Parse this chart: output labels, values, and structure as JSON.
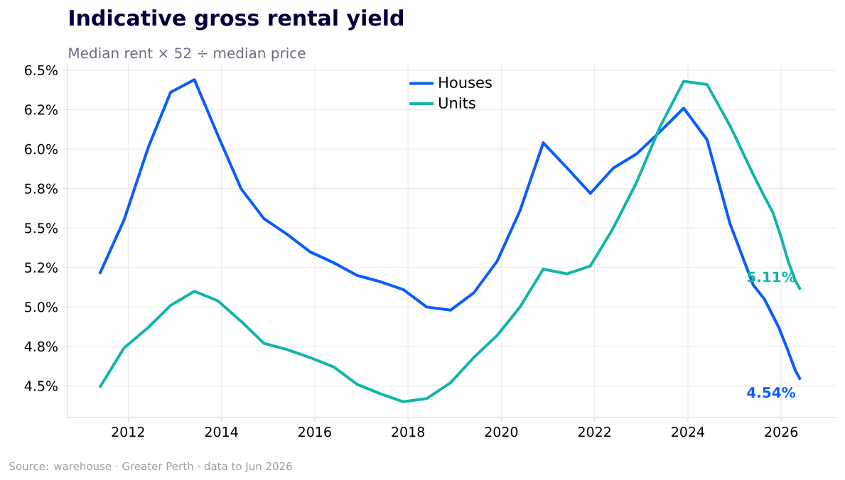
{
  "chart_data": {
    "type": "line",
    "title": "Indicative gross rental yield",
    "subtitle": "Median rent × 52 ÷ median price",
    "xlim": [
      2010.7,
      2027.17
    ],
    "xticks": [
      2012,
      2014,
      2016,
      2018,
      2020,
      2022,
      2024,
      2026
    ],
    "ylim": [
      4.3,
      6.54
    ],
    "yticks": [
      {
        "value": 4.5,
        "label": "4.5%"
      },
      {
        "value": 4.75,
        "label": "4.8%"
      },
      {
        "value": 5.0,
        "label": "5.0%"
      },
      {
        "value": 5.25,
        "label": "5.2%"
      },
      {
        "value": 5.5,
        "label": "5.5%"
      },
      {
        "value": 5.75,
        "label": "5.8%"
      },
      {
        "value": 6.0,
        "label": "6.0%"
      },
      {
        "value": 6.25,
        "label": "6.2%"
      },
      {
        "value": 6.5,
        "label": "6.5%"
      }
    ],
    "grid": true,
    "legend": "top",
    "line_style": "solid",
    "marker": "none",
    "series": [
      {
        "name": "Houses",
        "color": "#0a5cff",
        "x": [
          2011.39,
          2011.91,
          2012.43,
          2012.91,
          2013.42,
          2013.92,
          2014.42,
          2014.91,
          2015.41,
          2015.9,
          2016.41,
          2016.91,
          2017.41,
          2017.9,
          2018.4,
          2018.91,
          2019.41,
          2019.91,
          2020.4,
          2020.9,
          2021.41,
          2021.91,
          2022.4,
          2022.9,
          2023.4,
          2023.91,
          2024.41,
          2024.9,
          2025.4,
          2025.64,
          2025.95,
          2026.15,
          2026.3,
          2026.41
        ],
        "values": [
          5.21,
          5.55,
          6.01,
          6.36,
          6.44,
          6.09,
          5.75,
          5.56,
          5.46,
          5.35,
          5.28,
          5.2,
          5.16,
          5.11,
          5.0,
          4.98,
          5.09,
          5.29,
          5.61,
          6.04,
          5.88,
          5.72,
          5.88,
          5.97,
          6.11,
          6.26,
          6.06,
          5.53,
          5.14,
          5.05,
          4.87,
          4.72,
          4.6,
          4.54
        ]
      },
      {
        "name": "Units",
        "color": "#12b5a8",
        "x": [
          2011.39,
          2011.91,
          2012.43,
          2012.91,
          2013.42,
          2013.92,
          2014.42,
          2014.91,
          2015.41,
          2015.9,
          2016.41,
          2016.91,
          2017.41,
          2017.9,
          2018.4,
          2018.91,
          2019.41,
          2019.91,
          2020.4,
          2020.9,
          2021.41,
          2021.91,
          2022.4,
          2022.9,
          2023.4,
          2023.91,
          2024.41,
          2024.9,
          2025.4,
          2025.64,
          2025.82,
          2025.99,
          2026.15,
          2026.3,
          2026.41
        ],
        "values": [
          4.49,
          4.74,
          4.87,
          5.01,
          5.1,
          5.04,
          4.91,
          4.77,
          4.73,
          4.68,
          4.62,
          4.51,
          4.45,
          4.4,
          4.42,
          4.52,
          4.68,
          4.82,
          5.0,
          5.24,
          5.21,
          5.26,
          5.5,
          5.79,
          6.14,
          6.43,
          6.41,
          6.15,
          5.84,
          5.7,
          5.6,
          5.45,
          5.29,
          5.17,
          5.11
        ]
      }
    ],
    "annotations": [
      {
        "text": "5.11%",
        "x": 2026.41,
        "y": 5.11
      },
      {
        "text": "4.54%",
        "x": 2026.41,
        "y": 4.54
      },
      "Source: warehouse  ·  Greater Perth  ·  data to Jun 2026"
    ]
  }
}
